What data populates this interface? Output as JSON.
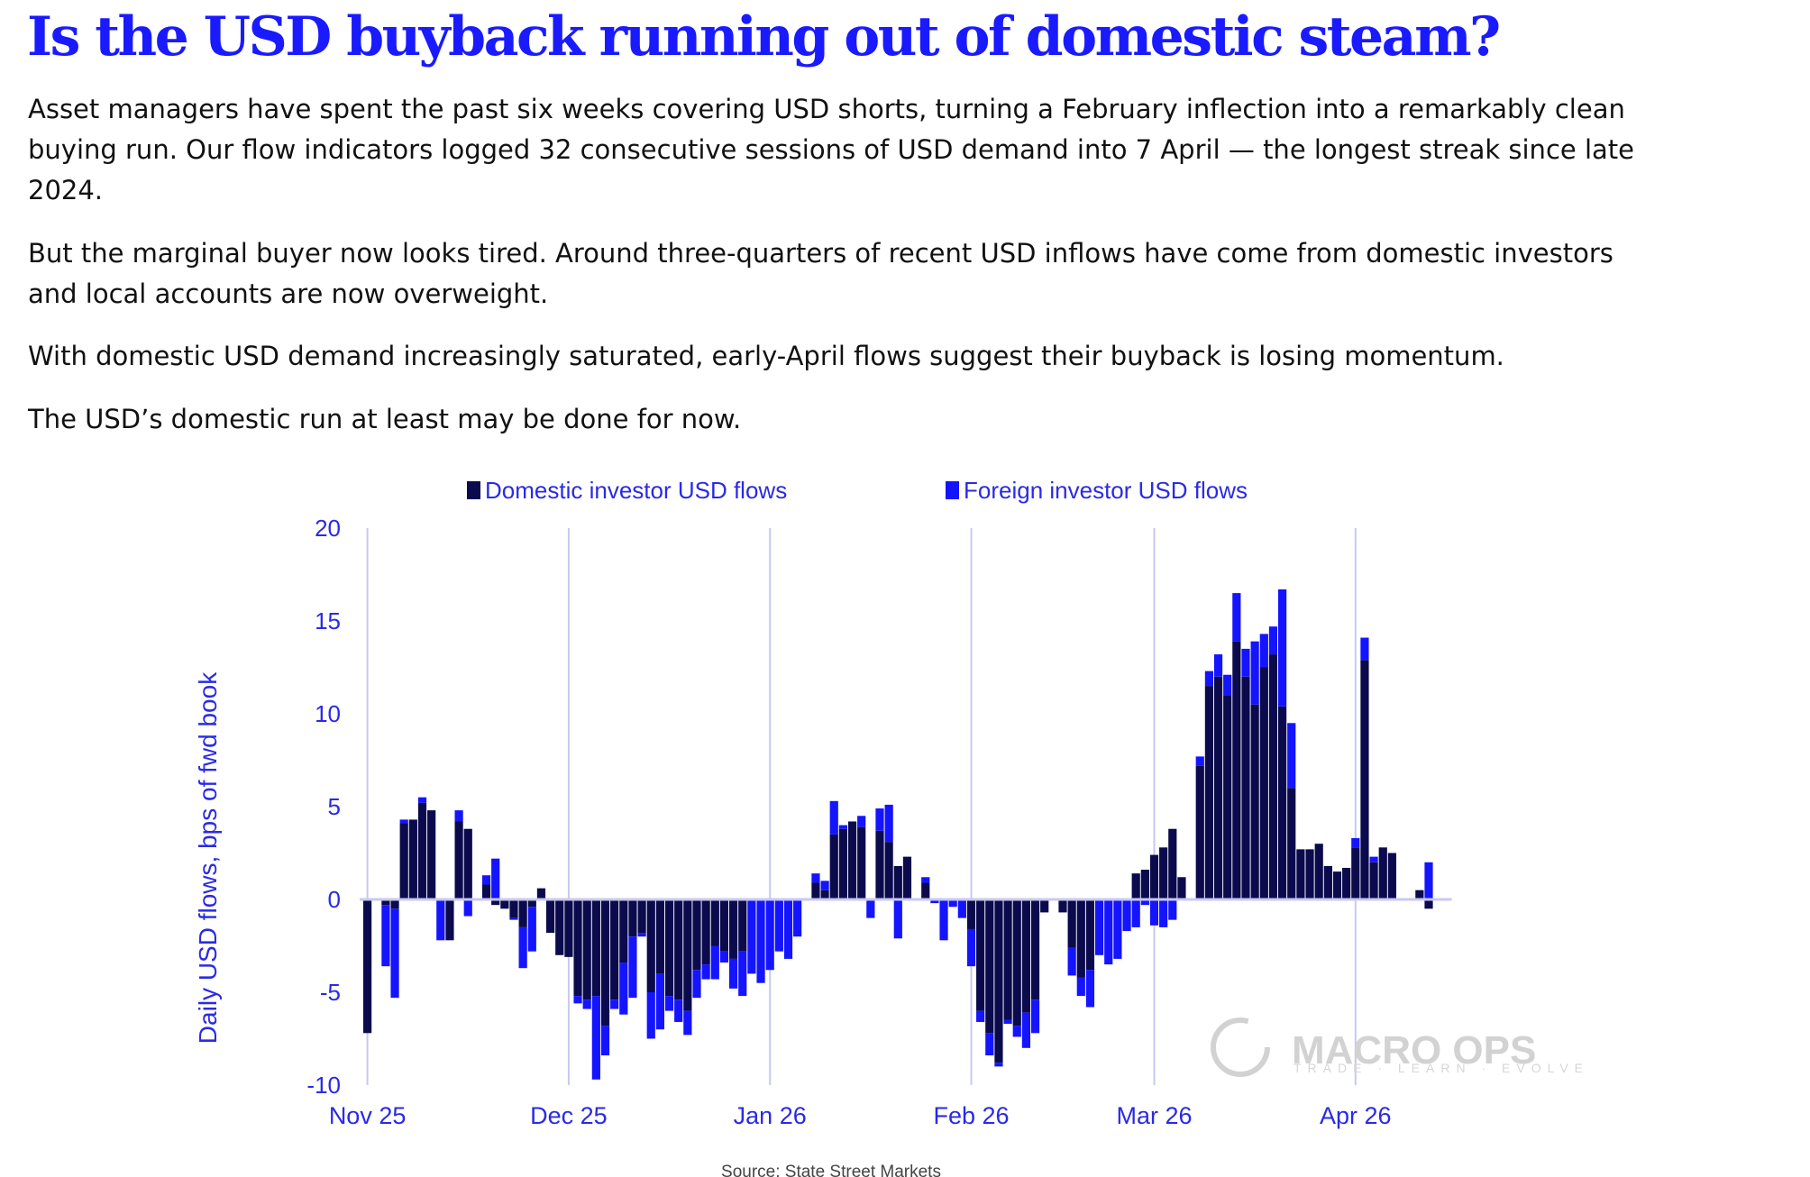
{
  "article": {
    "headline": "Is the USD buyback running out of domestic steam?",
    "paragraphs": [
      "Asset managers have spent the past six weeks covering USD shorts, turning a February inflection into a remarkably clean buying run. Our flow indicators logged 32 consecutive sessions of USD demand into 7 April — the longest streak since late 2024.",
      "But the marginal buyer now looks tired. Around three-quarters of recent USD inflows have come from domestic investors and local accounts are now overweight.",
      "With domestic USD demand increasingly saturated, early-April flows suggest their buyback is losing momentum.",
      "The USD’s domestic run at least may be done for now."
    ]
  },
  "watermark": {
    "brand": "MACRO OPS",
    "tagline": "TRADE · LEARN · EVOLVE"
  },
  "chart_data": {
    "type": "bar",
    "stacked": true,
    "ylabel": "Daily USD flows, bps of fwd book",
    "ylim": [
      -10,
      20
    ],
    "yticks": [
      20,
      15,
      10,
      5,
      0,
      -5,
      -10
    ],
    "xtick_labels": [
      "Nov 25",
      "Dec 25",
      "Jan 26",
      "Feb 26",
      "Mar 26",
      "Apr 26"
    ],
    "xtick_index": [
      0,
      22,
      44,
      66,
      86,
      108
    ],
    "legend": [
      "Domestic investor USD flows",
      "Foreign investor USD flows"
    ],
    "legend_position": "top",
    "grid": "vertical lines at month starts",
    "source": "Source: State Street Markets",
    "colors": {
      "domestic": "#0a0a4d",
      "foreign": "#1414ff",
      "axis": "#c8c8f0",
      "text": "#2a2ae6"
    },
    "series": [
      {
        "name": "Domestic investor USD flows",
        "values": [
          -7.2,
          0,
          -0.3,
          -0.5,
          4.1,
          4.3,
          5.2,
          4.8,
          0,
          -2.2,
          4.2,
          3.8,
          0,
          0.8,
          -0.3,
          -0.5,
          -1.0,
          -1.5,
          -0.4,
          0.6,
          -1.8,
          -3.0,
          -3.1,
          -5.2,
          -5.4,
          -5.2,
          -6.8,
          -5.4,
          -3.4,
          -2.0,
          -1.8,
          -5.0,
          -4.0,
          -5.2,
          -5.4,
          -6.0,
          -3.8,
          -3.5,
          -2.5,
          -2.8,
          -3.2,
          -2.8,
          0,
          0,
          0,
          0,
          0,
          0,
          0,
          0.9,
          0.5,
          3.5,
          3.8,
          4.2,
          3.9,
          0,
          3.7,
          3.1,
          1.8,
          2.3,
          0,
          0.9,
          0,
          0,
          0,
          0,
          -1.6,
          -6.0,
          -7.2,
          -8.8,
          -6.5,
          -6.8,
          -6.1,
          -5.4,
          -0.7,
          0,
          -0.7,
          -2.6,
          -4.2,
          -3.8,
          0,
          0,
          0,
          0,
          1.4,
          1.6,
          2.4,
          2.8,
          3.8,
          1.2,
          0,
          7.2,
          11.5,
          12.0,
          11.0,
          13.9,
          12.0,
          10.5,
          12.5,
          13.2,
          10.4,
          6.0,
          2.7,
          2.7,
          3.0,
          1.8,
          1.5,
          1.7,
          2.8,
          12.9,
          2.0,
          2.8,
          2.5,
          0,
          0,
          0.5,
          -0.5
        ],
        "note": "estimated from chart"
      },
      {
        "name": "Foreign investor USD flows",
        "values": [
          0,
          0,
          -3.3,
          -4.8,
          0.2,
          0,
          0.3,
          0,
          -2.2,
          0,
          0.6,
          -0.9,
          0,
          0.5,
          2.2,
          0,
          -0.1,
          -2.2,
          -2.4,
          0,
          0,
          0,
          0,
          -0.4,
          -0.5,
          -4.5,
          -1.6,
          -0.5,
          -2.8,
          -3.3,
          -0.2,
          -2.5,
          -3.0,
          -0.8,
          -1.2,
          -1.3,
          -1.5,
          -0.8,
          -1.8,
          -0.6,
          -1.6,
          -2.4,
          -4.0,
          -4.5,
          -3.8,
          -2.8,
          -3.2,
          -2.0,
          0,
          0.5,
          0.5,
          1.8,
          0.2,
          0,
          0.6,
          -1.0,
          1.2,
          2.0,
          -2.1,
          0,
          0,
          0.3,
          -0.2,
          -2.2,
          -0.4,
          -1.0,
          -2.0,
          -0.6,
          -1.2,
          -0.2,
          -0.2,
          -0.6,
          -1.9,
          -1.8,
          0,
          0,
          0,
          -1.5,
          -1.0,
          -2.0,
          -3.0,
          -3.5,
          -3.2,
          -1.7,
          -1.5,
          -0.3,
          -1.4,
          -1.5,
          -1.1,
          0,
          0,
          0.5,
          0.8,
          1.2,
          1.1,
          2.6,
          1.5,
          3.4,
          1.8,
          1.5,
          6.3,
          3.5,
          0,
          0,
          0,
          0,
          0,
          0,
          0.5,
          1.2,
          0.3,
          0,
          0,
          0,
          0,
          0,
          2.0,
          0.5,
          -0.2
        ],
        "note": "estimated from chart"
      }
    ]
  }
}
